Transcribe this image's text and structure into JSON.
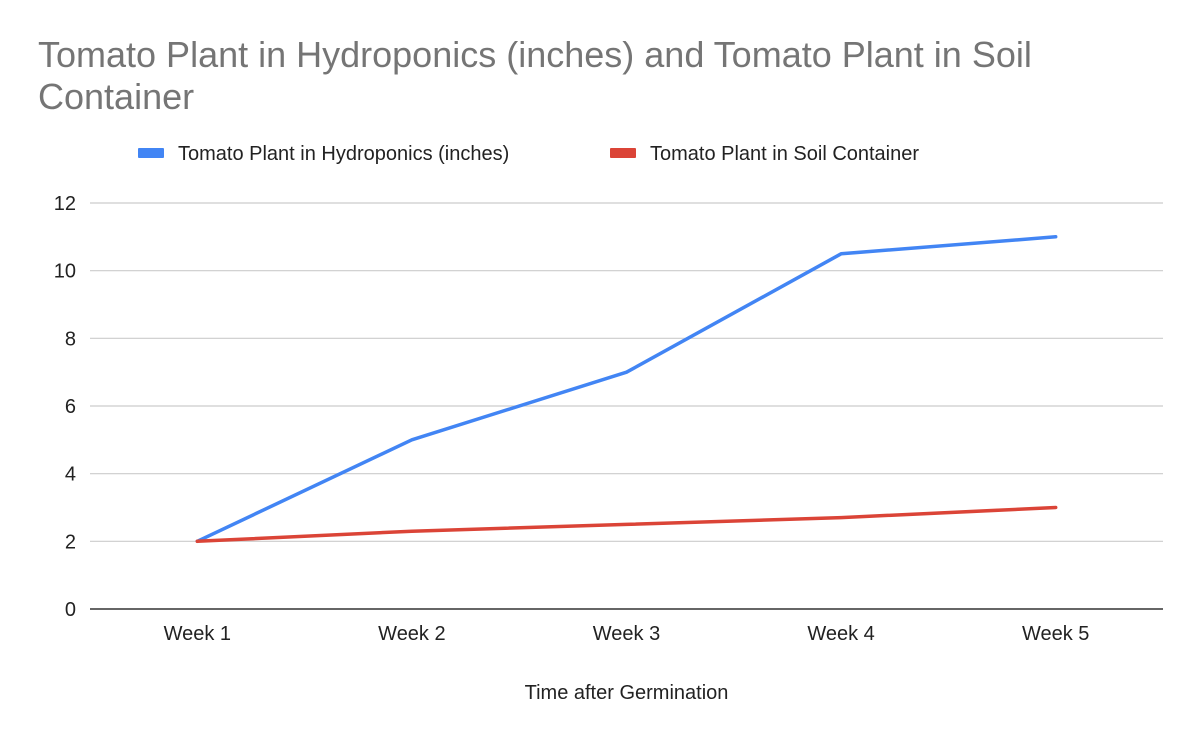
{
  "chart_data": {
    "type": "line",
    "title": "Tomato Plant in Hydroponics (inches) and Tomato Plant in Soil Container",
    "xlabel": "Time after Germination",
    "ylabel": "",
    "categories": [
      "Week 1",
      "Week 2",
      "Week 3",
      "Week 4",
      "Week 5"
    ],
    "ylim": [
      0,
      12
    ],
    "yticks": [
      0,
      2,
      4,
      6,
      8,
      10,
      12
    ],
    "grid": true,
    "legend_position": "top",
    "series": [
      {
        "name": "Tomato Plant in Hydroponics (inches)",
        "color": "#4285f4",
        "values": [
          2,
          5,
          7,
          10.5,
          11
        ]
      },
      {
        "name": "Tomato Plant in Soil Container",
        "color": "#db4437",
        "values": [
          2,
          2.3,
          2.5,
          2.7,
          3
        ]
      }
    ]
  }
}
